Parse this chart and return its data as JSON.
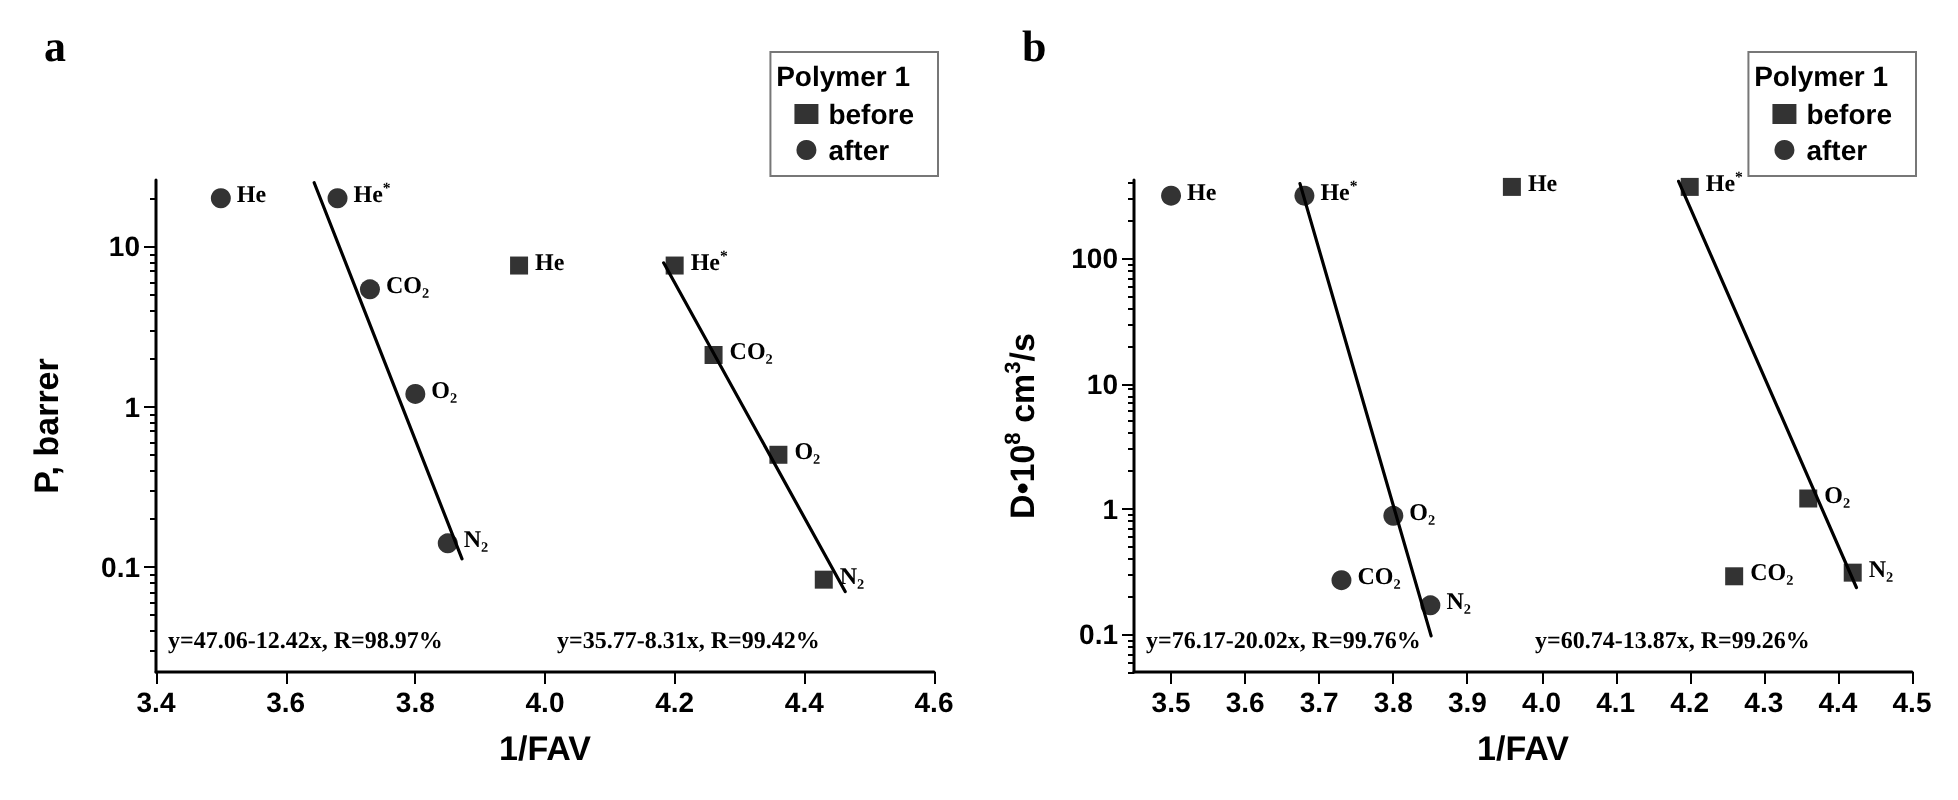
{
  "chart_data": [
    {
      "type": "scatter",
      "title": "a",
      "xlabel": "1/FAV",
      "ylabel": "P, barrer",
      "legend_title": "Polymer 1",
      "legend": "top right",
      "grid": false,
      "log": "y",
      "xlim": [
        3.4,
        4.6
      ],
      "xticks": [
        3.4,
        3.6,
        3.8,
        {
          "value": 4,
          "label": "4.0"
        },
        4.2,
        4.4,
        4.6
      ],
      "ylim": [
        0.022,
        26
      ],
      "yticks": [
        0.1,
        1,
        10
      ],
      "series": [
        {
          "name": "before",
          "type": "scatter",
          "marker": "square",
          "color": "#000000",
          "x": [
            3.96,
            4.2,
            4.26,
            4.36,
            4.43
          ],
          "values": [
            7.6,
            7.6,
            2.1,
            0.5,
            0.083
          ]
        },
        {
          "name": "after",
          "type": "scatter",
          "marker": "circle",
          "color": "#000000",
          "x": [
            3.5,
            3.68,
            3.73,
            3.8,
            3.85
          ],
          "values": [
            20,
            20,
            5.4,
            1.2,
            0.14
          ]
        },
        {
          "type": "line",
          "marker": "none",
          "color": "#000000",
          "x": [
            3.644,
            3.872
          ],
          "values": [
            25,
            0.112
          ]
        },
        {
          "type": "line",
          "marker": "none",
          "color": "#000000",
          "x": [
            4.183,
            4.463
          ],
          "values": [
            7.9,
            0.07
          ]
        }
      ],
      "annotations": [
        {
          "text": "He",
          "x": 3.5,
          "y": 20
        },
        {
          "text": "He$^{*}$",
          "x": 3.68,
          "y": 20
        },
        {
          "text": "CO₂",
          "x": 3.73,
          "y": 5.4
        },
        {
          "text": "O₂",
          "x": 3.8,
          "y": 1.2
        },
        {
          "text": "N₂",
          "x": 3.85,
          "y": 0.14
        },
        {
          "text": "He",
          "x": 3.96,
          "y": 7.6
        },
        {
          "text": "He$^{*}$",
          "x": 4.2,
          "y": 7.6
        },
        {
          "text": "CO₂",
          "x": 4.26,
          "y": 2.1
        },
        {
          "text": "O₂",
          "x": 4.36,
          "y": 0.5
        },
        {
          "text": "N₂",
          "x": 4.43,
          "y": 0.083
        },
        "y=47.06-12.42x, R=98.97%",
        "y=35.77-8.31x, R=99.42%"
      ]
    },
    {
      "type": "scatter",
      "title": "b",
      "xlabel": "1/FAV",
      "ylabel": "D•10$^{8}$ cm$^{3}$/s",
      "legend_title": "Polymer 1",
      "legend": "top right",
      "grid": false,
      "log": "y",
      "xlim": [
        3.45,
        4.5
      ],
      "xticks": [
        3.5,
        3.6,
        3.7,
        3.8,
        3.9,
        {
          "value": 4,
          "label": "4.0"
        },
        4.1,
        4.2,
        4.3,
        4.4,
        4.5
      ],
      "ylim": [
        0.05,
        420
      ],
      "yticks": [
        0.1,
        1,
        10,
        100
      ],
      "series": [
        {
          "name": "before",
          "type": "scatter",
          "marker": "square",
          "color": "#000000",
          "x": [
            3.96,
            4.2,
            4.26,
            4.36,
            4.42
          ],
          "values": [
            370,
            370,
            0.29,
            1.21,
            0.31
          ]
        },
        {
          "name": "after",
          "type": "scatter",
          "marker": "circle",
          "color": "#000000",
          "x": [
            3.5,
            3.68,
            3.73,
            3.8,
            3.85
          ],
          "values": [
            315,
            315,
            0.27,
            0.88,
            0.17
          ]
        },
        {
          "type": "line",
          "marker": "none",
          "color": "#000000",
          "x": [
            3.674,
            3.851
          ],
          "values": [
            393,
            0.097
          ]
        },
        {
          "type": "line",
          "marker": "none",
          "color": "#000000",
          "x": [
            4.185,
            4.425
          ],
          "values": [
            410,
            0.236
          ]
        }
      ],
      "annotations": [
        {
          "text": "He",
          "x": 3.5,
          "y": 315
        },
        {
          "text": "He$^{*}$",
          "x": 3.68,
          "y": 315
        },
        {
          "text": "CO₂",
          "x": 3.73,
          "y": 0.27
        },
        {
          "text": "O₂",
          "x": 3.8,
          "y": 0.88
        },
        {
          "text": "N₂",
          "x": 3.85,
          "y": 0.17
        },
        {
          "text": "He",
          "x": 3.96,
          "y": 370
        },
        {
          "text": "He$^{*}$",
          "x": 4.2,
          "y": 370
        },
        {
          "text": "CO₂",
          "x": 4.26,
          "y": 0.29
        },
        {
          "text": "O₂",
          "x": 4.36,
          "y": 1.21
        },
        {
          "text": "N₂",
          "x": 4.42,
          "y": 0.31
        },
        "y=76.17-20.02x, R=99.76%",
        "y=60.74-13.87x, R=99.26%"
      ]
    }
  ]
}
